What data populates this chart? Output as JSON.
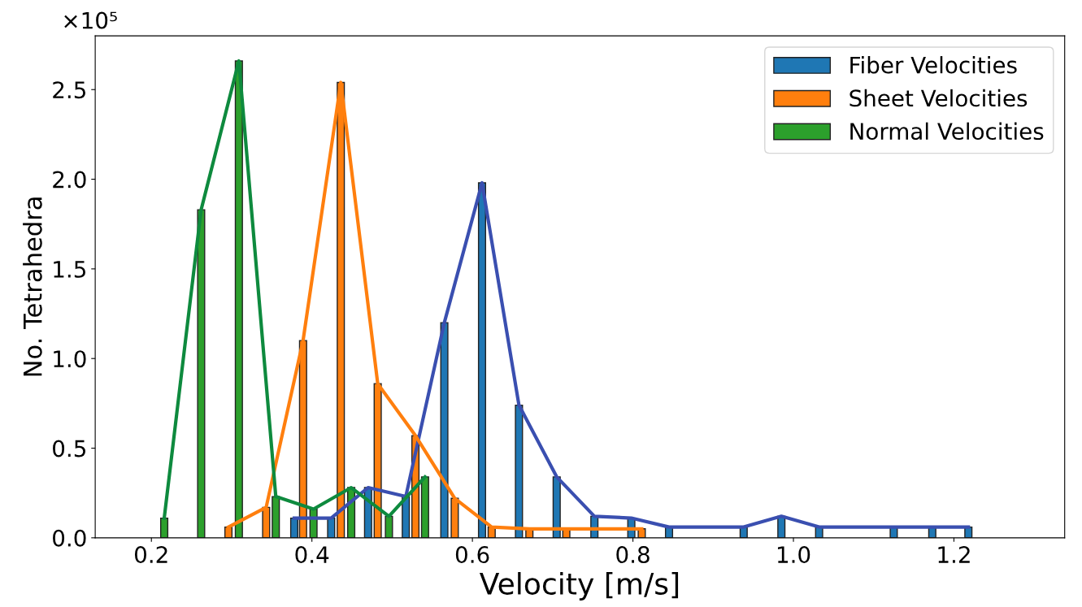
{
  "chart_data": {
    "type": "bar",
    "xlabel": "Velocity [m/s]",
    "ylabel": "No. Tetrahedra",
    "annotations": [
      "×10⁵"
    ],
    "xlim": [
      0.13,
      1.338
    ],
    "xticks": [
      {
        "value": 0.2,
        "label": "0.2"
      },
      {
        "value": 0.4,
        "label": "0.4"
      },
      {
        "value": 0.6,
        "label": "0.6"
      },
      {
        "value": 0.8,
        "label": "0.8"
      },
      {
        "value": 1.0,
        "label": "1.0"
      },
      {
        "value": 1.2,
        "label": "1.2"
      }
    ],
    "ylim": [
      0,
      2.8
    ],
    "yticks": [
      {
        "value": 0,
        "label": "0.0"
      },
      {
        "value": 0.5,
        "label": "0.5"
      },
      {
        "value": 1.0,
        "label": "1.0"
      },
      {
        "value": 1.5,
        "label": "1.5"
      },
      {
        "value": 2.0,
        "label": "2.0"
      },
      {
        "value": 2.5,
        "label": "2.5"
      }
    ],
    "grid": false,
    "legend": "top right",
    "series": [
      {
        "name": "Fiber Velocities",
        "color": "#1f77b4",
        "x": [
          0.378,
          0.424,
          0.47,
          0.517,
          0.565,
          0.612,
          0.658,
          0.705,
          0.752,
          0.798,
          0.845,
          0.938,
          0.985,
          1.032,
          1.125,
          1.173,
          1.218
        ],
        "values": [
          0.11,
          0.11,
          0.28,
          0.23,
          1.2,
          1.98,
          0.74,
          0.34,
          0.12,
          0.11,
          0.06,
          0.06,
          0.12,
          0.06,
          0.06,
          0.06,
          0.06
        ]
      },
      {
        "name": "Sheet Velocities",
        "color": "#ff7f0e",
        "x": [
          0.296,
          0.343,
          0.389,
          0.436,
          0.482,
          0.529,
          0.578,
          0.624,
          0.671,
          0.717,
          0.811
        ],
        "values": [
          0.06,
          0.17,
          1.1,
          2.54,
          0.86,
          0.57,
          0.22,
          0.06,
          0.05,
          0.05,
          0.05
        ]
      },
      {
        "name": "Normal Velocities",
        "color": "#2ca02c",
        "x": [
          0.216,
          0.262,
          0.309,
          0.355,
          0.402,
          0.449,
          0.496,
          0.541
        ],
        "values": [
          0.11,
          1.83,
          2.66,
          0.23,
          0.16,
          0.28,
          0.12,
          0.34
        ]
      },
      {
        "type": "line",
        "color": "#3a4fb0",
        "x": [
          0.378,
          0.424,
          0.47,
          0.517,
          0.565,
          0.612,
          0.658,
          0.705,
          0.752,
          0.798,
          0.845,
          0.938,
          0.985,
          1.032,
          1.125,
          1.173,
          1.218
        ],
        "values": [
          0.11,
          0.11,
          0.28,
          0.23,
          1.2,
          1.98,
          0.74,
          0.34,
          0.12,
          0.11,
          0.06,
          0.06,
          0.12,
          0.06,
          0.06,
          0.06,
          0.06
        ]
      },
      {
        "type": "line",
        "color": "#ff7f0e",
        "x": [
          0.296,
          0.343,
          0.389,
          0.436,
          0.482,
          0.529,
          0.578,
          0.624,
          0.671,
          0.717,
          0.811
        ],
        "values": [
          0.06,
          0.17,
          1.1,
          2.54,
          0.86,
          0.57,
          0.22,
          0.06,
          0.05,
          0.05,
          0.05
        ]
      },
      {
        "type": "line",
        "color": "#0e8a3e",
        "x": [
          0.216,
          0.262,
          0.309,
          0.355,
          0.402,
          0.449,
          0.496,
          0.541
        ],
        "values": [
          0.11,
          1.83,
          2.66,
          0.23,
          0.16,
          0.28,
          0.12,
          0.34
        ]
      }
    ]
  }
}
